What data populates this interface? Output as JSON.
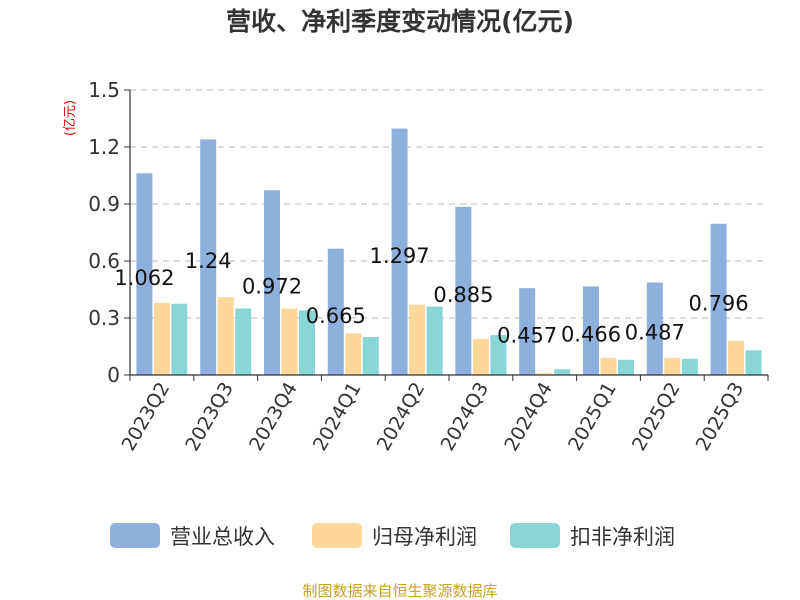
{
  "chart_data": {
    "type": "bar",
    "title": "营收、净利季度变动情况(亿元)",
    "ylabel": "(亿元)",
    "ylim": [
      0,
      1.5
    ],
    "yticks": [
      0,
      0.3,
      0.6,
      0.9,
      1.2,
      1.5
    ],
    "ytick_labels": [
      "0",
      "0.3",
      "0.6",
      "0.9",
      "1.2",
      "1.5"
    ],
    "grid": true,
    "legend_position": "bottom",
    "categories": [
      "2023Q2",
      "2023Q3",
      "2023Q4",
      "2024Q1",
      "2024Q2",
      "2024Q3",
      "2024Q4",
      "2025Q1",
      "2025Q2",
      "2025Q3"
    ],
    "series": [
      {
        "name": "营业总收入",
        "color": "#8eb0dc",
        "values": [
          1.062,
          1.24,
          0.972,
          0.665,
          1.297,
          0.885,
          0.457,
          0.466,
          0.487,
          0.796
        ],
        "labels": [
          "1.062",
          "1.24",
          "0.972",
          "0.665",
          "1.297",
          "0.885",
          "0.457",
          "0.466",
          "0.487",
          "0.796"
        ]
      },
      {
        "name": "归母净利润",
        "color": "#fdd89a",
        "values": [
          0.38,
          0.41,
          0.35,
          0.22,
          0.37,
          0.19,
          0.01,
          0.09,
          0.09,
          0.18
        ]
      },
      {
        "name": "扣非净利润",
        "color": "#88d6d6",
        "values": [
          0.375,
          0.35,
          0.34,
          0.2,
          0.36,
          0.21,
          0.03,
          0.08,
          0.085,
          0.13
        ]
      }
    ]
  },
  "footer": {
    "source": "制图数据来自恒生聚源数据库"
  }
}
